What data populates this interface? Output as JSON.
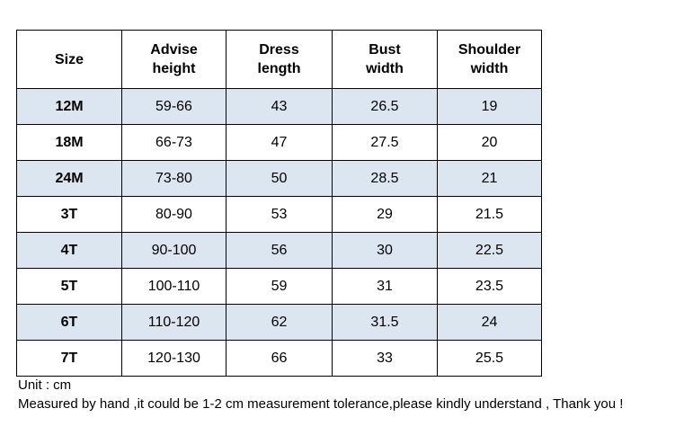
{
  "table": {
    "header": [
      "Size",
      "Advise height",
      "Dress length",
      "Bust width",
      "Shoulder width"
    ],
    "rows": [
      [
        "12M",
        "59-66",
        "43",
        "26.5",
        "19"
      ],
      [
        "18M",
        "66-73",
        "47",
        "27.5",
        "20"
      ],
      [
        "24M",
        "73-80",
        "50",
        "28.5",
        "21"
      ],
      [
        "3T",
        "80-90",
        "53",
        "29",
        "21.5"
      ],
      [
        "4T",
        "90-100",
        "56",
        "30",
        "22.5"
      ],
      [
        "5T",
        "100-110",
        "59",
        "31",
        "23.5"
      ],
      [
        "6T",
        "110-120",
        "62",
        "31.5",
        "24"
      ],
      [
        "7T",
        "120-130",
        "66",
        "33",
        "25.5"
      ]
    ]
  },
  "notes": [
    "Unit : cm",
    "Measured by hand ,it could be 1-2 cm measurement tolerance,please kindly understand , Thank you !"
  ]
}
